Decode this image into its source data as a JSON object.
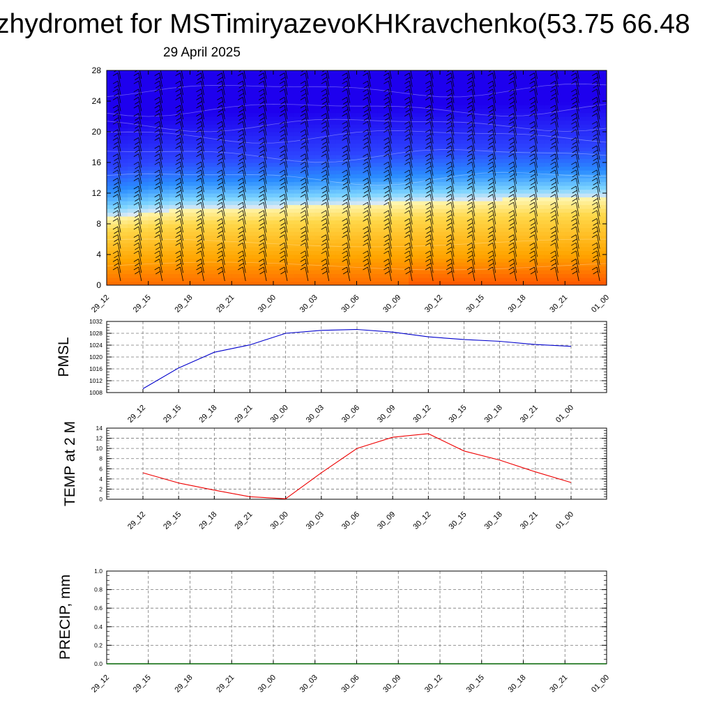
{
  "header": {
    "title": "zhydromet for MSTimiryazevoKHKravchenko(53.75 66.48",
    "subtitle": "29 April 2025"
  },
  "colors": {
    "pmsl_line": "#0000cc",
    "temp_line": "#ee0000",
    "precip_line": "#006400",
    "grid": "#777777",
    "section_cold": "#1e00ee",
    "section_mid": "#7cd4ff",
    "section_pale": "#fff6b0",
    "section_warm": "#ff6a00"
  },
  "chart_data": [
    {
      "type": "heatmap",
      "title": "",
      "xlabel": "",
      "ylabel": "",
      "x": [
        "29_12",
        "29_15",
        "29_18",
        "29_21",
        "30_00",
        "30_03",
        "30_06",
        "30_09",
        "30_12",
        "30_15",
        "30_18",
        "30_21",
        "01_00"
      ],
      "y_ticks": [
        0,
        4,
        8,
        12,
        16,
        20,
        24,
        28
      ],
      "ylim": [
        0,
        28
      ],
      "freezing_level": [
        8.8,
        9.5,
        10.0,
        10.1,
        10.2,
        10.4,
        10.6,
        10.8,
        11.0,
        11.2,
        11.3,
        11.4,
        11.5
      ],
      "has_wind_barbs": true
    },
    {
      "type": "line",
      "title": "",
      "ylabel": "PMSL",
      "x": [
        "29_12",
        "29_15",
        "29_18",
        "29_21",
        "30_00",
        "30_03",
        "30_06",
        "30_09",
        "30_12",
        "30_15",
        "30_18",
        "30_21",
        "01_00"
      ],
      "y_ticks": [
        1008,
        1012,
        1016,
        1020,
        1024,
        1028,
        1032
      ],
      "ylim": [
        1008,
        1032
      ],
      "series": [
        {
          "values": [
            1009.3,
            1016.3,
            1021.6,
            1024.1,
            1028.0,
            1029.0,
            1029.3,
            1028.4,
            1026.8,
            1025.9,
            1025.3,
            1024.2,
            1023.6
          ]
        }
      ],
      "grid": true
    },
    {
      "type": "line",
      "title": "",
      "ylabel": "TEMP at 2 M",
      "x": [
        "29_12",
        "29_15",
        "29_18",
        "29_21",
        "30_00",
        "30_03",
        "30_06",
        "30_09",
        "30_12",
        "30_15",
        "30_18",
        "30_21",
        "01_00"
      ],
      "y_ticks": [
        0,
        2,
        4,
        6,
        8,
        10,
        12,
        14
      ],
      "ylim": [
        0,
        14
      ],
      "series": [
        {
          "values": [
            5.2,
            3.2,
            1.8,
            0.5,
            0.1,
            5.2,
            10.0,
            12.2,
            12.9,
            9.5,
            7.7,
            5.4,
            3.3
          ]
        }
      ],
      "grid": true
    },
    {
      "type": "line",
      "title": "",
      "ylabel": "PRECIP, mm",
      "x": [
        "29_12",
        "29_15",
        "29_18",
        "29_21",
        "30_00",
        "30_03",
        "30_06",
        "30_09",
        "30_12",
        "30_15",
        "30_18",
        "30_21",
        "01_00"
      ],
      "y_ticks": [
        "0.0",
        "0.2",
        "0.4",
        "0.6",
        "0.8",
        "1.0"
      ],
      "ylim": [
        0,
        1
      ],
      "series": [
        {
          "values": [
            0,
            0,
            0,
            0,
            0,
            0,
            0,
            0,
            0,
            0,
            0,
            0,
            0
          ]
        }
      ],
      "grid": true
    }
  ]
}
